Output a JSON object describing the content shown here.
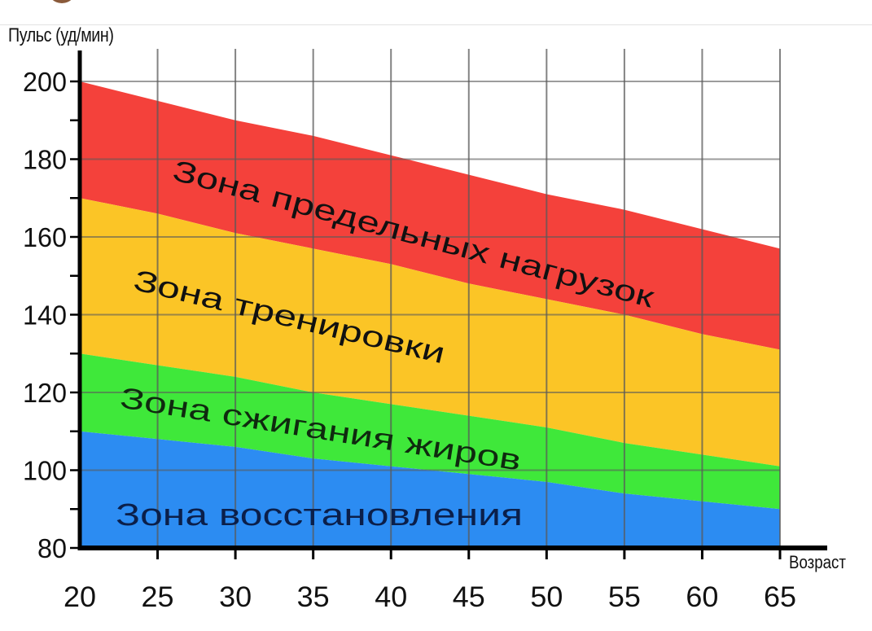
{
  "page": {
    "header_strip": {
      "avatar_partial": "avatar"
    }
  },
  "chart_data": {
    "type": "area",
    "title": "",
    "xlabel": "Возраст",
    "ylabel": "Пульс (уд/мин)",
    "x": [
      20,
      25,
      30,
      35,
      40,
      45,
      50,
      55,
      60,
      65
    ],
    "x_ticks": [
      "20",
      "25",
      "30",
      "35",
      "40",
      "45",
      "50",
      "55",
      "60",
      "65"
    ],
    "y_ticks": [
      "80",
      "100",
      "120",
      "140",
      "160",
      "180",
      "200"
    ],
    "xlim": [
      20,
      65
    ],
    "ylim": [
      80,
      200
    ],
    "grid": true,
    "legend": "inline labels inside zones",
    "boundaries": {
      "max_hr": {
        "start": 200,
        "end": 157
      },
      "limit_lower": {
        "start": 170,
        "end": 131
      },
      "training_lower": {
        "start": 130,
        "end": 101
      },
      "fatburn_lower": {
        "start": 110,
        "end": 90
      },
      "baseline": {
        "start": 80,
        "end": 80
      }
    },
    "series": [
      {
        "name": "Зона предельных нагрузок",
        "color": "#f4413b",
        "upper": [
          200,
          195,
          190,
          186,
          181,
          176,
          171,
          167,
          162,
          157
        ],
        "lower": [
          170,
          166,
          161,
          157,
          153,
          148,
          144,
          140,
          135,
          131
        ]
      },
      {
        "name": "Зона тренировки",
        "color": "#fbc526",
        "upper": [
          170,
          166,
          161,
          157,
          153,
          148,
          144,
          140,
          135,
          131
        ],
        "lower": [
          130,
          127,
          124,
          120,
          117,
          114,
          111,
          107,
          104,
          101
        ]
      },
      {
        "name": "Зона сжигания жиров",
        "color": "#3fe83a",
        "upper": [
          130,
          127,
          124,
          120,
          117,
          114,
          111,
          107,
          104,
          101
        ],
        "lower": [
          110,
          108,
          106,
          103,
          101,
          99,
          97,
          94,
          92,
          90
        ]
      },
      {
        "name": "Зона восстановления",
        "color": "#2c8cf2",
        "upper": [
          110,
          108,
          106,
          103,
          101,
          99,
          97,
          94,
          92,
          90
        ],
        "lower": [
          80,
          80,
          80,
          80,
          80,
          80,
          80,
          80,
          80,
          80
        ]
      }
    ],
    "zone_labels": [
      {
        "text": "Зона предельных нагрузок",
        "color": "#111111"
      },
      {
        "text": "Зона тренировки",
        "color": "#111111"
      },
      {
        "text": "Зона сжигания жиров",
        "color": "#0f2a0f"
      },
      {
        "text": "Зона восстановления",
        "color": "#0b1f4a"
      }
    ]
  }
}
